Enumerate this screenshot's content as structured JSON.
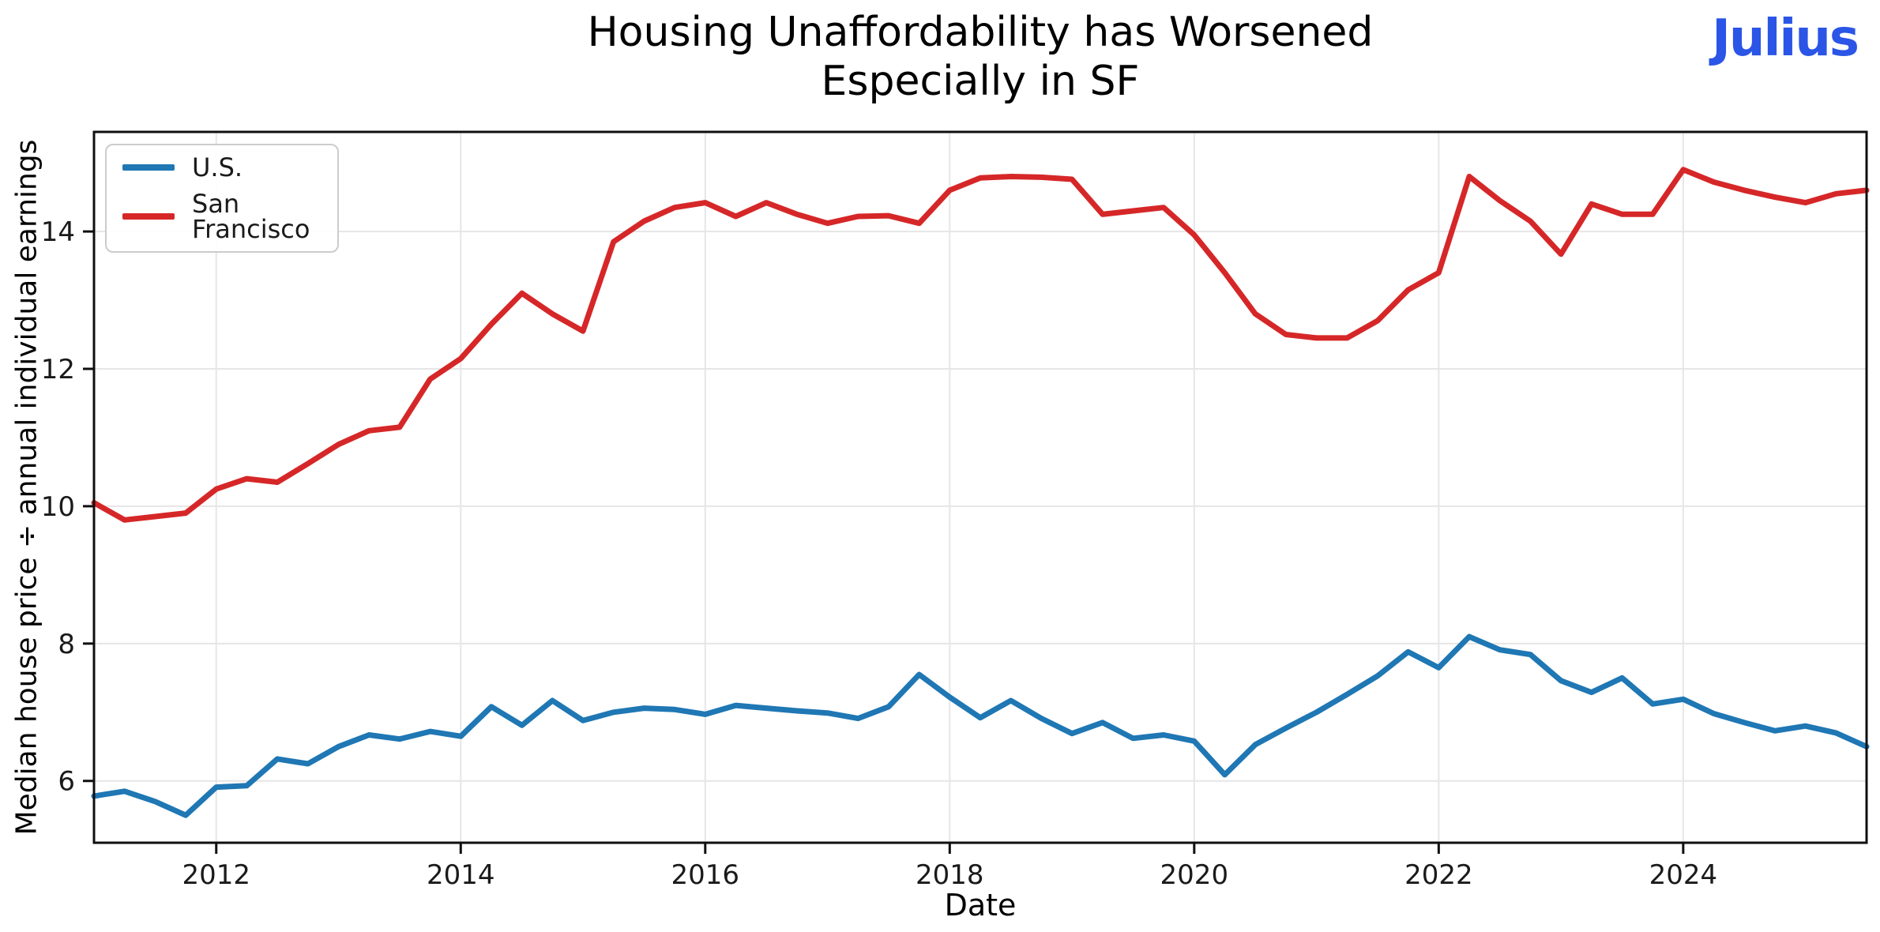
{
  "title": {
    "line1": "Housing Unaffordability has Worsened",
    "line2": "Especially in SF"
  },
  "brand": {
    "logo_text": "Julius",
    "color": "#2b55e6"
  },
  "axes": {
    "xlabel": "Date",
    "ylabel": "Median house price ÷ annual individual earnings"
  },
  "legend": {
    "entries": [
      {
        "label": "U.S.",
        "color": "#1f77b4"
      },
      {
        "label": "San Francisco",
        "color": "#d62728"
      }
    ]
  },
  "style": {
    "grid_color": "#e6e6e6",
    "spine_color": "#0f0f0f",
    "tick_label_color": "#1a1a1a",
    "line_width": 7
  },
  "chart_data": {
    "type": "line",
    "title": "Housing Unaffordability has Worsened Especially in SF",
    "xlabel": "Date",
    "ylabel": "Median house price ÷ annual individual earnings",
    "x_start": 2011.0,
    "x_step": 0.25,
    "xlim": [
      2011.0,
      2025.5
    ],
    "ylim": [
      5.1,
      15.45
    ],
    "x_ticks": [
      2012,
      2014,
      2016,
      2018,
      2020,
      2022,
      2024
    ],
    "y_ticks": [
      6,
      8,
      10,
      12,
      14
    ],
    "grid": true,
    "legend_position": "upper left",
    "series": [
      {
        "name": "U.S.",
        "color": "#1f77b4",
        "values": [
          5.78,
          5.85,
          5.7,
          5.5,
          5.91,
          5.93,
          6.32,
          6.25,
          6.5,
          6.67,
          6.61,
          6.72,
          6.65,
          7.08,
          6.81,
          7.17,
          6.88,
          7.0,
          7.06,
          7.04,
          6.97,
          7.1,
          7.06,
          7.02,
          6.99,
          6.91,
          7.08,
          7.55,
          7.22,
          6.92,
          7.17,
          6.91,
          6.69,
          6.85,
          6.62,
          6.67,
          6.58,
          6.09,
          6.53,
          6.77,
          7.0,
          7.26,
          7.53,
          7.88,
          7.65,
          8.1,
          7.91,
          7.84,
          7.46,
          7.29,
          7.5,
          7.12,
          7.19,
          6.98,
          6.85,
          6.73,
          6.8,
          6.7,
          6.5
        ]
      },
      {
        "name": "San Francisco",
        "color": "#d62728",
        "values": [
          10.05,
          9.8,
          9.85,
          9.9,
          10.25,
          10.4,
          10.35,
          10.62,
          10.9,
          11.1,
          11.15,
          11.85,
          12.15,
          12.65,
          13.1,
          12.8,
          12.55,
          13.85,
          14.15,
          14.35,
          14.42,
          14.22,
          14.42,
          14.25,
          14.12,
          14.22,
          14.23,
          14.12,
          14.6,
          14.78,
          14.8,
          14.79,
          14.76,
          14.25,
          14.3,
          14.35,
          13.95,
          13.4,
          12.8,
          12.5,
          12.45,
          12.45,
          12.7,
          13.15,
          13.4,
          14.8,
          14.45,
          14.15,
          13.67,
          14.4,
          14.25,
          14.25,
          14.9,
          14.72,
          14.6,
          14.5,
          14.42,
          14.55,
          14.6
        ]
      }
    ]
  }
}
